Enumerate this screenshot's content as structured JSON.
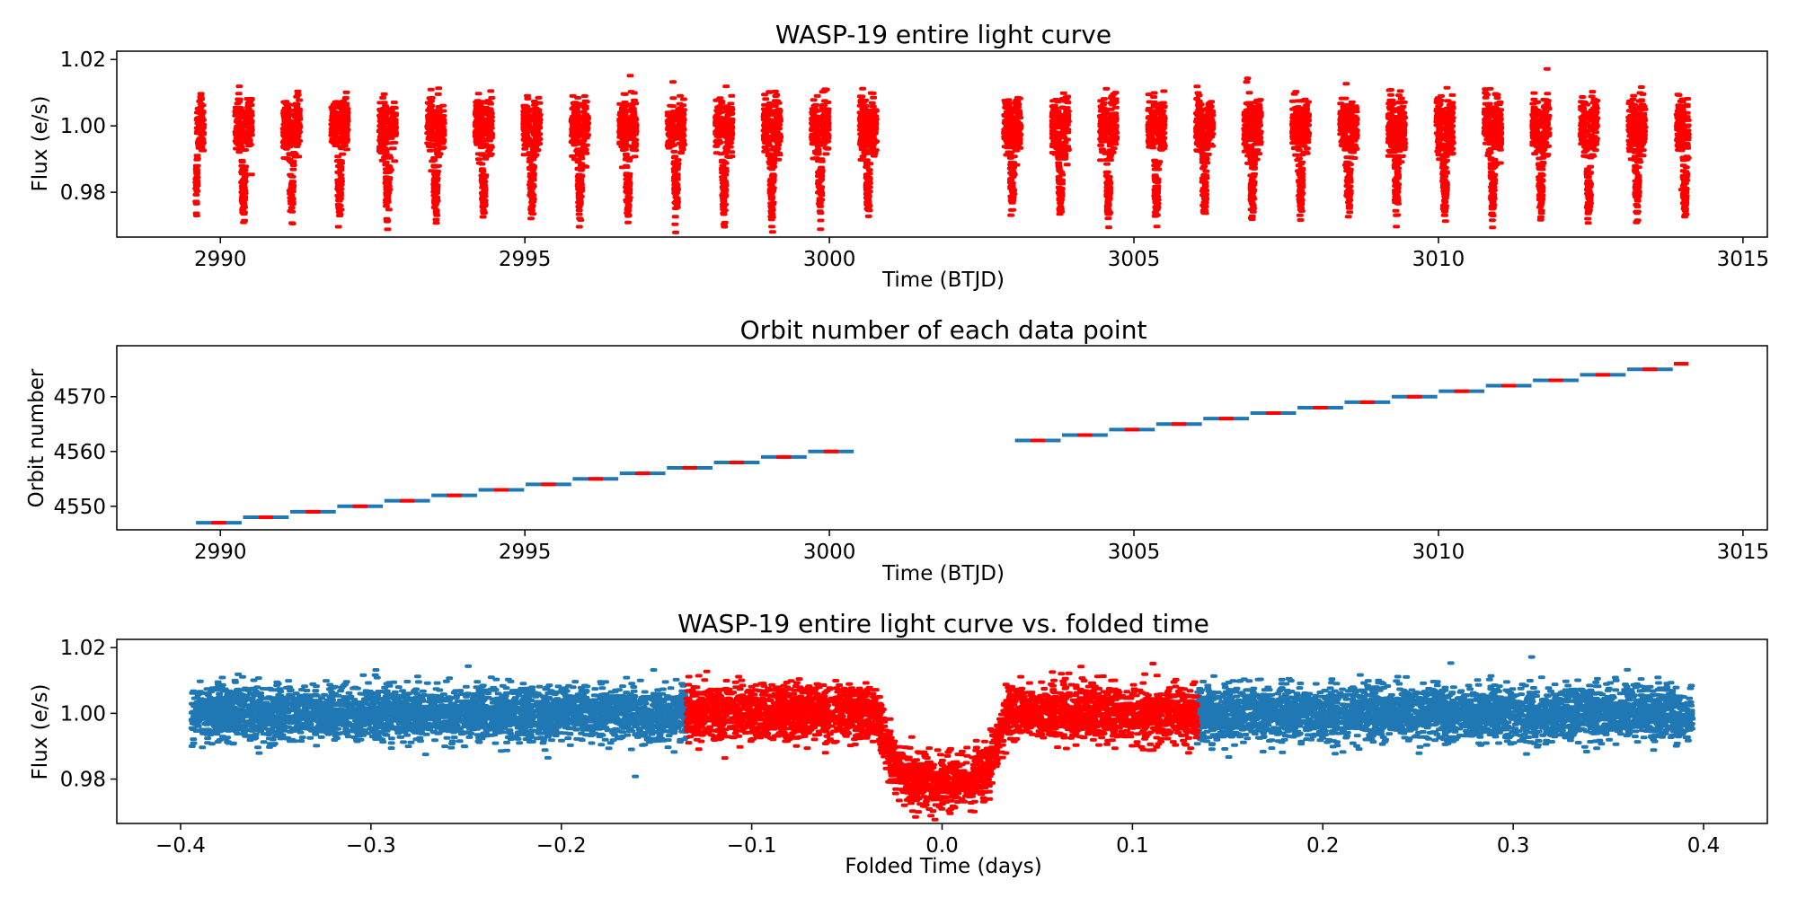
{
  "chart_data": [
    {
      "type": "scatter",
      "title": "WASP-19 entire light curve",
      "xlabel": "Time (BTJD)",
      "ylabel": "Flux (e/s)",
      "xlim": [
        2988.3,
        3015.4
      ],
      "ylim": [
        0.9665,
        1.0225
      ],
      "xticks": [
        2990,
        2995,
        3000,
        3005,
        3010,
        3015
      ],
      "xtick_labels": [
        "2990",
        "2995",
        "3000",
        "3005",
        "3010",
        "3015"
      ],
      "yticks": [
        0.98,
        1.0,
        1.02
      ],
      "ytick_labels": [
        "0.98",
        "1.00",
        "1.02"
      ],
      "grid": false,
      "series": [
        {
          "color": "#ff0000",
          "period_days": 0.7889,
          "first_transit_time": 2991.17,
          "transit_depth": 0.021,
          "segments": [
            {
              "start": 2989.6,
              "end": 3000.8
            },
            {
              "start": 3002.8,
              "end": 3014.1
            }
          ],
          "scatter_sigma": 0.004
        }
      ]
    },
    {
      "type": "scatter",
      "title": "Orbit number of each data point",
      "xlabel": "Time (BTJD)",
      "ylabel": "Orbit number",
      "xlim": [
        2988.3,
        3015.4
      ],
      "ylim": [
        4545.7,
        4579.3
      ],
      "xticks": [
        2990,
        2995,
        3000,
        3005,
        3010,
        3015
      ],
      "xtick_labels": [
        "2990",
        "2995",
        "3000",
        "3005",
        "3010",
        "3015"
      ],
      "yticks": [
        4550,
        4560,
        4570
      ],
      "ytick_labels": [
        "4550",
        "4560",
        "4570"
      ],
      "grid": false,
      "orbit_start": 4547,
      "orbit_end": 4578,
      "colors": {
        "out_of_transit": "#1f77b4",
        "in_transit": "#ff0000"
      }
    },
    {
      "type": "scatter",
      "title": "WASP-19 entire light curve vs. folded time",
      "xlabel": "Folded Time (days)",
      "ylabel": "Flux (e/s)",
      "xlim": [
        -0.4335,
        0.4335
      ],
      "ylim": [
        0.9665,
        1.0225
      ],
      "xticks": [
        -0.4,
        -0.3,
        -0.2,
        -0.1,
        0.0,
        0.1,
        0.2,
        0.3,
        0.4
      ],
      "xtick_labels": [
        "−0.4",
        "−0.3",
        "−0.2",
        "−0.1",
        "0.0",
        "0.1",
        "0.2",
        "0.3",
        "0.4"
      ],
      "yticks": [
        0.98,
        1.0,
        1.02
      ],
      "ytick_labels": [
        "0.98",
        "1.00",
        "1.02"
      ],
      "grid": false,
      "x_range": [
        -0.394,
        0.394
      ],
      "highlight_window": [
        -0.134,
        0.134
      ],
      "transit_half_width": 0.034,
      "transit_depth": 0.021,
      "colors": {
        "outside_window": "#1f77b4",
        "inside_window": "#ff0000"
      }
    }
  ]
}
